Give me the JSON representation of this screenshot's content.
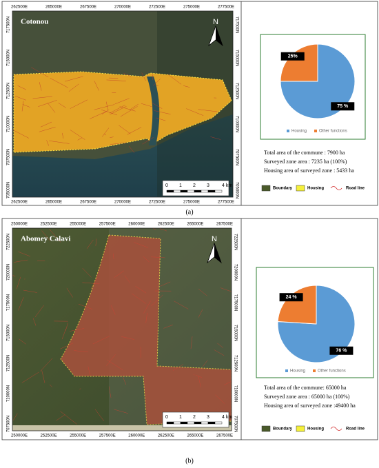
{
  "panels": [
    {
      "caption": "(a)",
      "map": {
        "title": "Cotonou",
        "north": "N",
        "x_labels": [
          "262500E",
          "265000E",
          "267500E",
          "270000E",
          "272500E",
          "275000E",
          "277500E"
        ],
        "y_labels_left": [
          "717500N",
          "715000N",
          "712500N",
          "710000N",
          "707500N",
          "705000N"
        ],
        "y_labels_right": [
          "717500N",
          "715000N",
          "712500N",
          "710000N",
          "707500N",
          "705000N"
        ],
        "scale_labels": [
          "0",
          "1",
          "2",
          "3",
          "4 km"
        ]
      },
      "stats": [
        "Total area of the commune : 7900 ha",
        "Surveyed  zone area : 7235 ha (100%)",
        "Housing area of surveyed zone : 5433 ha"
      ],
      "legend": [
        "Boundary",
        "Housing",
        "Road line"
      ]
    },
    {
      "caption": "(b)",
      "map": {
        "title": "Abomey Calavi",
        "north": "N",
        "x_labels": [
          "250000E",
          "252500E",
          "255000E",
          "257500E",
          "260000E",
          "262500E",
          "265000E",
          "267500E"
        ],
        "y_labels_left": [
          "722500N",
          "720000N",
          "717500N",
          "715000N",
          "712500N",
          "710000N",
          "707500N"
        ],
        "y_labels_right": [
          "722500N",
          "720000N",
          "717500N",
          "715000N",
          "712500N",
          "710000N",
          "707500N"
        ],
        "scale_labels": [
          "0",
          "1",
          "2",
          "3",
          "4 km"
        ]
      },
      "stats": [
        "Total area of the commune: 65000 ha",
        "Surveyed  zone area : 65000 ha (100%)",
        "Housing area of surveyed zone :49400 ha"
      ],
      "legend": [
        "Boundary",
        "Housing",
        "Road line"
      ]
    }
  ],
  "chart_data": [
    {
      "type": "pie",
      "categories": [
        "Housing",
        "Other functions"
      ],
      "values": [
        75,
        25
      ],
      "value_labels": [
        "75 %",
        "25%"
      ],
      "colors": [
        "#5b9bd5",
        "#ed7d31"
      ]
    },
    {
      "type": "pie",
      "categories": [
        "Housing",
        "Other functions"
      ],
      "values": [
        76,
        24
      ],
      "value_labels": [
        "76 %",
        "24 %"
      ],
      "colors": [
        "#5b9bd5",
        "#ed7d31"
      ]
    }
  ]
}
